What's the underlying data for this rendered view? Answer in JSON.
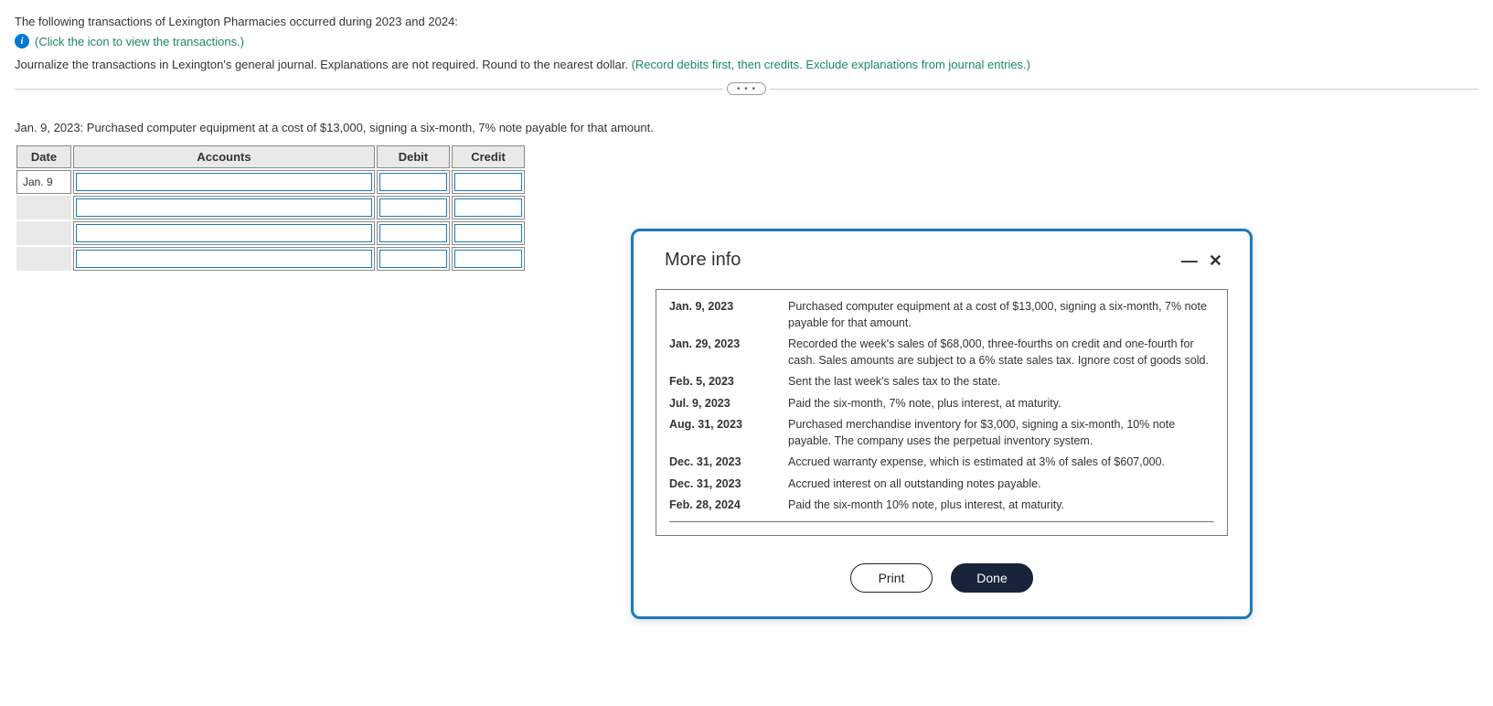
{
  "header": {
    "intro": "The following transactions of Lexington Pharmacies occurred during 2023 and 2024:",
    "info_link": "(Click the icon to view the transactions.)",
    "instruction_plain": "Journalize the transactions in Lexington's general journal. Explanations are not required. Round to the nearest dollar. ",
    "instruction_green": "(Record debits first, then credits. Exclude explanations from journal entries.)"
  },
  "divider": {
    "pill": "• • •"
  },
  "transaction": {
    "description": "Jan. 9, 2023: Purchased computer equipment at a cost of $13,000, signing a six-month, 7% note payable for that amount.",
    "columns": {
      "date": "Date",
      "accounts": "Accounts",
      "debit": "Debit",
      "credit": "Credit"
    },
    "first_date": "Jan. 9"
  },
  "modal": {
    "title": "More info",
    "print_label": "Print",
    "done_label": "Done",
    "rows": [
      {
        "date": "Jan. 9, 2023",
        "text": "Purchased computer equipment at a cost of $13,000, signing a six-month, 7% note payable for that amount."
      },
      {
        "date": "Jan. 29, 2023",
        "text": "Recorded the week's sales of $68,000, three-fourths on credit and one-fourth for cash. Sales amounts are subject to a 6% state sales tax. Ignore cost of goods sold."
      },
      {
        "date": "Feb. 5, 2023",
        "text": "Sent the last week's sales tax to the state."
      },
      {
        "date": "Jul. 9, 2023",
        "text": "Paid the six-month, 7% note, plus interest, at maturity."
      },
      {
        "date": "Aug. 31, 2023",
        "text": "Purchased merchandise inventory for $3,000, signing a six-month, 10% note payable. The company uses the perpetual inventory system."
      },
      {
        "date": "Dec. 31, 2023",
        "text": "Accrued warranty expense, which is estimated at 3% of sales of $607,000."
      },
      {
        "date": "Dec. 31, 2023",
        "text": "Accrued interest on all outstanding notes payable."
      },
      {
        "date": "Feb. 28, 2024",
        "text": "Paid the six-month 10% note, plus interest, at maturity."
      }
    ]
  },
  "colors": {
    "link_green": "#1a8a5a",
    "modal_border": "#1a7bbd",
    "done_bg": "#18243a"
  }
}
